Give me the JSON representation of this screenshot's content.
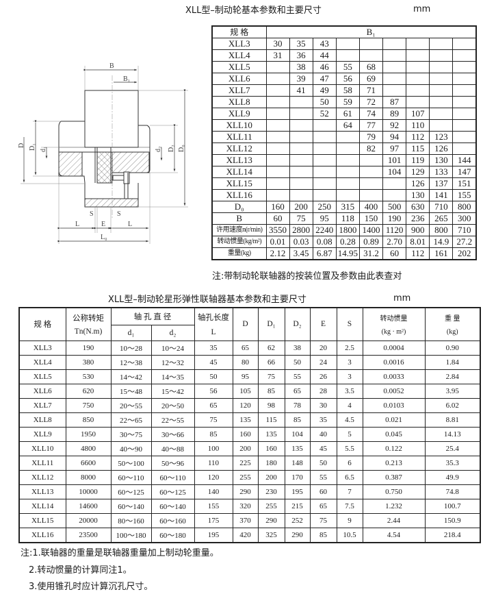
{
  "table1": {
    "title": "XLL型–制动轮基本参数和主要尺寸",
    "unit": "mm",
    "header_spec": "规 格",
    "header_b1": "B₁",
    "rows": [
      {
        "spec": "XLL3",
        "b1": [
          "30",
          "35",
          "43",
          "",
          "",
          "",
          "",
          "",
          ""
        ]
      },
      {
        "spec": "XLL4",
        "b1": [
          "31",
          "36",
          "44",
          "",
          "",
          "",
          "",
          "",
          ""
        ]
      },
      {
        "spec": "XLL5",
        "b1": [
          "",
          "38",
          "46",
          "55",
          "68",
          "",
          "",
          "",
          ""
        ]
      },
      {
        "spec": "XLL6",
        "b1": [
          "",
          "39",
          "47",
          "56",
          "69",
          "",
          "",
          "",
          ""
        ]
      },
      {
        "spec": "XLL7",
        "b1": [
          "",
          "41",
          "49",
          "58",
          "71",
          "",
          "",
          "",
          ""
        ]
      },
      {
        "spec": "XLL8",
        "b1": [
          "",
          "",
          "50",
          "59",
          "72",
          "87",
          "",
          "",
          ""
        ]
      },
      {
        "spec": "XLL9",
        "b1": [
          "",
          "",
          "52",
          "61",
          "74",
          "89",
          "107",
          "",
          ""
        ]
      },
      {
        "spec": "XLL10",
        "b1": [
          "",
          "",
          "",
          "64",
          "77",
          "92",
          "110",
          "",
          ""
        ]
      },
      {
        "spec": "XLL11",
        "b1": [
          "",
          "",
          "",
          "",
          "79",
          "94",
          "112",
          "123",
          ""
        ]
      },
      {
        "spec": "XLL12",
        "b1": [
          "",
          "",
          "",
          "",
          "82",
          "97",
          "115",
          "126",
          ""
        ]
      },
      {
        "spec": "XLL13",
        "b1": [
          "",
          "",
          "",
          "",
          "",
          "101",
          "119",
          "130",
          "144"
        ]
      },
      {
        "spec": "XLL14",
        "b1": [
          "",
          "",
          "",
          "",
          "",
          "104",
          "129",
          "133",
          "147"
        ]
      },
      {
        "spec": "XLL15",
        "b1": [
          "",
          "",
          "",
          "",
          "",
          "",
          "126",
          "137",
          "151"
        ]
      },
      {
        "spec": "XLL16",
        "b1": [
          "",
          "",
          "",
          "",
          "",
          "",
          "130",
          "141",
          "155"
        ]
      }
    ],
    "param_rows": [
      {
        "label": "D₀",
        "values": [
          "160",
          "200",
          "250",
          "315",
          "400",
          "500",
          "630",
          "710",
          "800"
        ]
      },
      {
        "label": "B",
        "values": [
          "60",
          "75",
          "95",
          "118",
          "150",
          "190",
          "236",
          "265",
          "300"
        ]
      },
      {
        "label": "许用速度n(r/min)",
        "values": [
          "3550",
          "2800",
          "2240",
          "1800",
          "1400",
          "1120",
          "900",
          "800",
          "710"
        ]
      },
      {
        "label": "转动惯量(kg/m²)",
        "values": [
          "0.01",
          "0.03",
          "0.08",
          "0.28",
          "0.89",
          "2.70",
          "8.01",
          "14.9",
          "27.2"
        ]
      },
      {
        "label": "重量(kg)",
        "values": [
          "2.12",
          "3.45",
          "6.87",
          "14.95",
          "31.2",
          "60",
          "112",
          "161",
          "202"
        ]
      }
    ],
    "note": "注:带制动轮联轴器的按装位置及参数由此表查对"
  },
  "diagram": {
    "labels": {
      "B": "B",
      "B1": "B₁",
      "D": "D",
      "D1": "D₁",
      "d1": "d₁",
      "d2": "d₂",
      "D2": "D₂",
      "D0": "D₀",
      "S": "S",
      "E": "E",
      "L": "L",
      "L0": "L₀"
    }
  },
  "table2": {
    "title": "XLL型–制动轮星形弹性联轴器基本参数和主要尺寸",
    "unit": "mm",
    "headers": {
      "spec": "规  格",
      "torque": "公称转矩",
      "torque_unit": "Tn(N.m)",
      "bore": "轴 孔 直 径",
      "d1": "d₁",
      "d2": "d₂",
      "length": "轴孔长度",
      "length_sym": "L",
      "D": "D",
      "D1": "D₁",
      "D2": "D₂",
      "E": "E",
      "S": "S",
      "inertia": "转动惯量",
      "inertia_unit": "(kg · m²)",
      "weight": "重 量",
      "weight_unit": "(kg)"
    },
    "rows": [
      [
        "XLL3",
        "190",
        "10～28",
        "10～24",
        "35",
        "65",
        "62",
        "38",
        "20",
        "2.5",
        "0.0004",
        "0.90"
      ],
      [
        "XLL4",
        "380",
        "12～38",
        "12～32",
        "45",
        "80",
        "66",
        "50",
        "24",
        "3",
        "0.0016",
        "1.84"
      ],
      [
        "XLL5",
        "530",
        "14～42",
        "14～35",
        "50",
        "95",
        "75",
        "55",
        "26",
        "3",
        "0.0033",
        "2.84"
      ],
      [
        "XLL6",
        "620",
        "15～48",
        "15～42",
        "56",
        "105",
        "85",
        "65",
        "28",
        "3.5",
        "0.0052",
        "3.95"
      ],
      [
        "XLL7",
        "750",
        "20～55",
        "20～50",
        "65",
        "120",
        "98",
        "78",
        "30",
        "4",
        "0.0103",
        "6.02"
      ],
      [
        "XLL8",
        "850",
        "22～65",
        "22～55",
        "75",
        "135",
        "115",
        "85",
        "35",
        "4.5",
        "0.021",
        "8.81"
      ],
      [
        "XLL9",
        "1950",
        "30～75",
        "30～66",
        "85",
        "160",
        "135",
        "104",
        "40",
        "5",
        "0.045",
        "14.13"
      ],
      [
        "XLL10",
        "4800",
        "40～90",
        "40～88",
        "100",
        "200",
        "160",
        "135",
        "45",
        "5.5",
        "0.122",
        "25.4"
      ],
      [
        "XLL11",
        "6600",
        "50～100",
        "50～96",
        "110",
        "225",
        "180",
        "148",
        "50",
        "6",
        "0.213",
        "35.3"
      ],
      [
        "XLL12",
        "8000",
        "60～110",
        "60～110",
        "120",
        "255",
        "200",
        "170",
        "55",
        "6.5",
        "0.387",
        "49.9"
      ],
      [
        "XLL13",
        "10000",
        "60～125",
        "60～125",
        "140",
        "290",
        "230",
        "195",
        "60",
        "7",
        "0.750",
        "74.8"
      ],
      [
        "XLL14",
        "14600",
        "60～140",
        "60～140",
        "155",
        "320",
        "255",
        "215",
        "65",
        "7.5",
        "1.232",
        "100.7"
      ],
      [
        "XLL15",
        "20000",
        "80～160",
        "60～160",
        "175",
        "370",
        "290",
        "252",
        "75",
        "9",
        "2.44",
        "150.9"
      ],
      [
        "XLL16",
        "23500",
        "100～180",
        "60～180",
        "195",
        "420",
        "325",
        "290",
        "85",
        "10.5",
        "4.54",
        "218.4"
      ]
    ],
    "notes": [
      "注:1.联轴器的重量是联轴器重量加上制动轮重量。",
      "2.转动惯量的计算同注1。",
      "3.使用锥孔时应计算沉孔尺寸。"
    ]
  }
}
